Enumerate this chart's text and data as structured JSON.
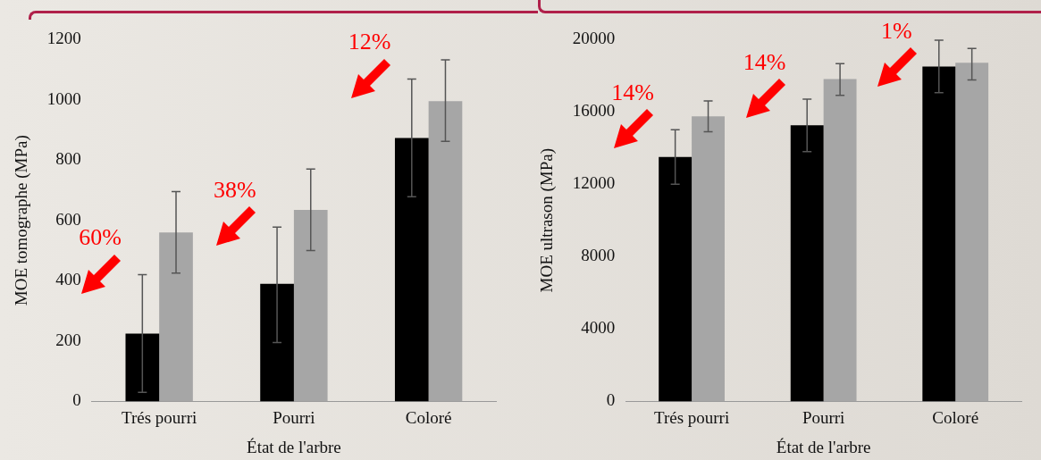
{
  "chart_data": [
    {
      "type": "bar",
      "categories": [
        "Trés pourri",
        "Pourri",
        "Coloré"
      ],
      "xlabel": "État de l'arbre",
      "ylabel": "MOE tomographe (MPa)",
      "ylim": [
        0,
        1200
      ],
      "yticks": [
        0,
        200,
        400,
        600,
        800,
        1000,
        1200
      ],
      "grid": false,
      "series": [
        {
          "color": "#000000",
          "values": [
            225,
            390,
            873
          ],
          "errors": [
            [
              30,
              420
            ],
            [
              195,
              578
            ],
            [
              678,
              1068
            ]
          ]
        },
        {
          "color": "#a6a6a6",
          "values": [
            560,
            635,
            995
          ],
          "errors": [
            [
              425,
              695
            ],
            [
              500,
              770
            ],
            [
              862,
              1132
            ]
          ]
        }
      ],
      "annotations": [
        "60%",
        "38%",
        "12%"
      ]
    },
    {
      "type": "bar",
      "categories": [
        "Trés pourri",
        "Pourri",
        "Coloré"
      ],
      "xlabel": "État de l'arbre",
      "ylabel": "MOE ultrason (MPa)",
      "ylim": [
        0,
        20000
      ],
      "yticks": [
        0,
        4000,
        8000,
        12000,
        16000,
        20000
      ],
      "grid": false,
      "series": [
        {
          "color": "#000000",
          "values": [
            13500,
            15250,
            18500
          ],
          "errors": [
            [
              12000,
              15000
            ],
            [
              13800,
              16700
            ],
            [
              17050,
              19950
            ]
          ]
        },
        {
          "color": "#a6a6a6",
          "values": [
            15750,
            17800,
            18700
          ],
          "errors": [
            [
              14900,
              16600
            ],
            [
              16900,
              18650
            ],
            [
              17750,
              19500
            ]
          ]
        }
      ],
      "annotations": [
        "14%",
        "14%",
        "1%"
      ]
    }
  ]
}
